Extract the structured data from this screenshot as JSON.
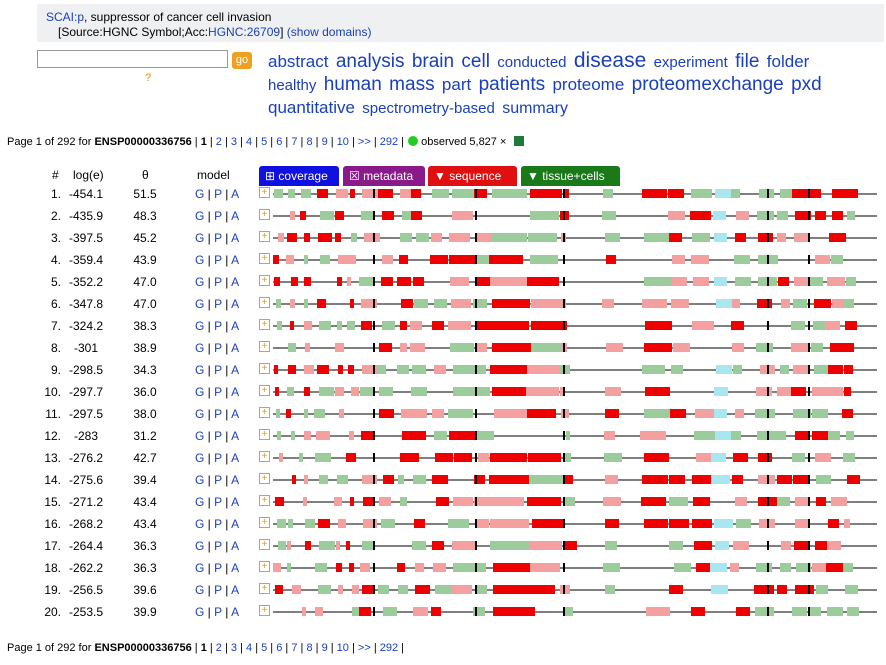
{
  "header": {
    "gene_link": "SCAI:p",
    "description": ", suppressor of cancer cell invasion",
    "source_prefix": "[Source:HGNC Symbol;Acc:",
    "hgnc_link": "HGNC:26709",
    "source_suffix": "]",
    "show_domains": "(show domains)"
  },
  "search": {
    "value": "",
    "go_label": "go",
    "help": "?"
  },
  "tag_cloud": [
    {
      "word": "abstract",
      "size": 17
    },
    {
      "word": "analysis",
      "size": 19
    },
    {
      "word": "brain",
      "size": 19
    },
    {
      "word": "cell",
      "size": 19
    },
    {
      "word": "conducted",
      "size": 15
    },
    {
      "word": "disease",
      "size": 21
    },
    {
      "word": "experiment",
      "size": 15
    },
    {
      "word": "file",
      "size": 19
    },
    {
      "word": "folder",
      "size": 17
    },
    {
      "word": "healthy",
      "size": 15
    },
    {
      "word": "human",
      "size": 19
    },
    {
      "word": "mass",
      "size": 19
    },
    {
      "word": "part",
      "size": 17
    },
    {
      "word": "patients",
      "size": 19
    },
    {
      "word": "proteome",
      "size": 17
    },
    {
      "word": "proteomexchange",
      "size": 19
    },
    {
      "word": "pxd",
      "size": 19
    },
    {
      "word": "quantitative",
      "size": 17
    },
    {
      "word": "spectrometry-based",
      "size": 15
    },
    {
      "word": "summary",
      "size": 16
    }
  ],
  "pager": {
    "prefix": "Page 1 of 292 for ",
    "protein": "ENSP00000336756",
    "current": "1",
    "pages": [
      "2",
      "3",
      "4",
      "5",
      "6",
      "7",
      "8",
      "9",
      "10"
    ],
    "next": ">>",
    "last": "292",
    "observed": "observed 5,827 ×"
  },
  "columns": {
    "num": "#",
    "log": "log(e)",
    "theta": "θ",
    "model": "model"
  },
  "tabs": [
    {
      "label": "⊞ coverage",
      "color": "#1010e0"
    },
    {
      "label": "☒ metadata",
      "color": "#8a1a8a"
    },
    {
      "label": "▼ sequence",
      "color": "#e01010"
    },
    {
      "label": "▼ tissue+cells",
      "color": "#1a7a1a"
    }
  ],
  "model_links": {
    "g": "G",
    "p": "P",
    "a": "A"
  },
  "colors": {
    "red": "#ee0000",
    "pink": "#f4a0a0",
    "green": "#9ccc9c",
    "cyan": "#a8e6f0",
    "line": "#555555"
  },
  "rows": [
    {
      "n": "1.",
      "log": "-454.1",
      "theta": "51.5"
    },
    {
      "n": "2.",
      "log": "-435.9",
      "theta": "48.3"
    },
    {
      "n": "3.",
      "log": "-397.5",
      "theta": "45.2"
    },
    {
      "n": "4.",
      "log": "-359.4",
      "theta": "43.9"
    },
    {
      "n": "5.",
      "log": "-352.2",
      "theta": "47.0"
    },
    {
      "n": "6.",
      "log": "-347.8",
      "theta": "47.0"
    },
    {
      "n": "7.",
      "log": "-324.2",
      "theta": "38.3"
    },
    {
      "n": "8.",
      "log": "-301",
      "theta": "38.9"
    },
    {
      "n": "9.",
      "log": "-298.5",
      "theta": "34.3"
    },
    {
      "n": "10.",
      "log": "-297.7",
      "theta": "36.0"
    },
    {
      "n": "11.",
      "log": "-297.5",
      "theta": "38.0"
    },
    {
      "n": "12.",
      "log": "-283",
      "theta": "31.2"
    },
    {
      "n": "13.",
      "log": "-276.2",
      "theta": "42.7"
    },
    {
      "n": "14.",
      "log": "-275.6",
      "theta": "39.4"
    },
    {
      "n": "15.",
      "log": "-271.2",
      "theta": "43.4"
    },
    {
      "n": "16.",
      "log": "-268.2",
      "theta": "43.4"
    },
    {
      "n": "17.",
      "log": "-264.4",
      "theta": "36.3"
    },
    {
      "n": "18.",
      "log": "-262.2",
      "theta": "36.3"
    },
    {
      "n": "19.",
      "log": "-256.5",
      "theta": "39.6"
    },
    {
      "n": "20.",
      "log": "-253.5",
      "theta": "39.9"
    }
  ]
}
